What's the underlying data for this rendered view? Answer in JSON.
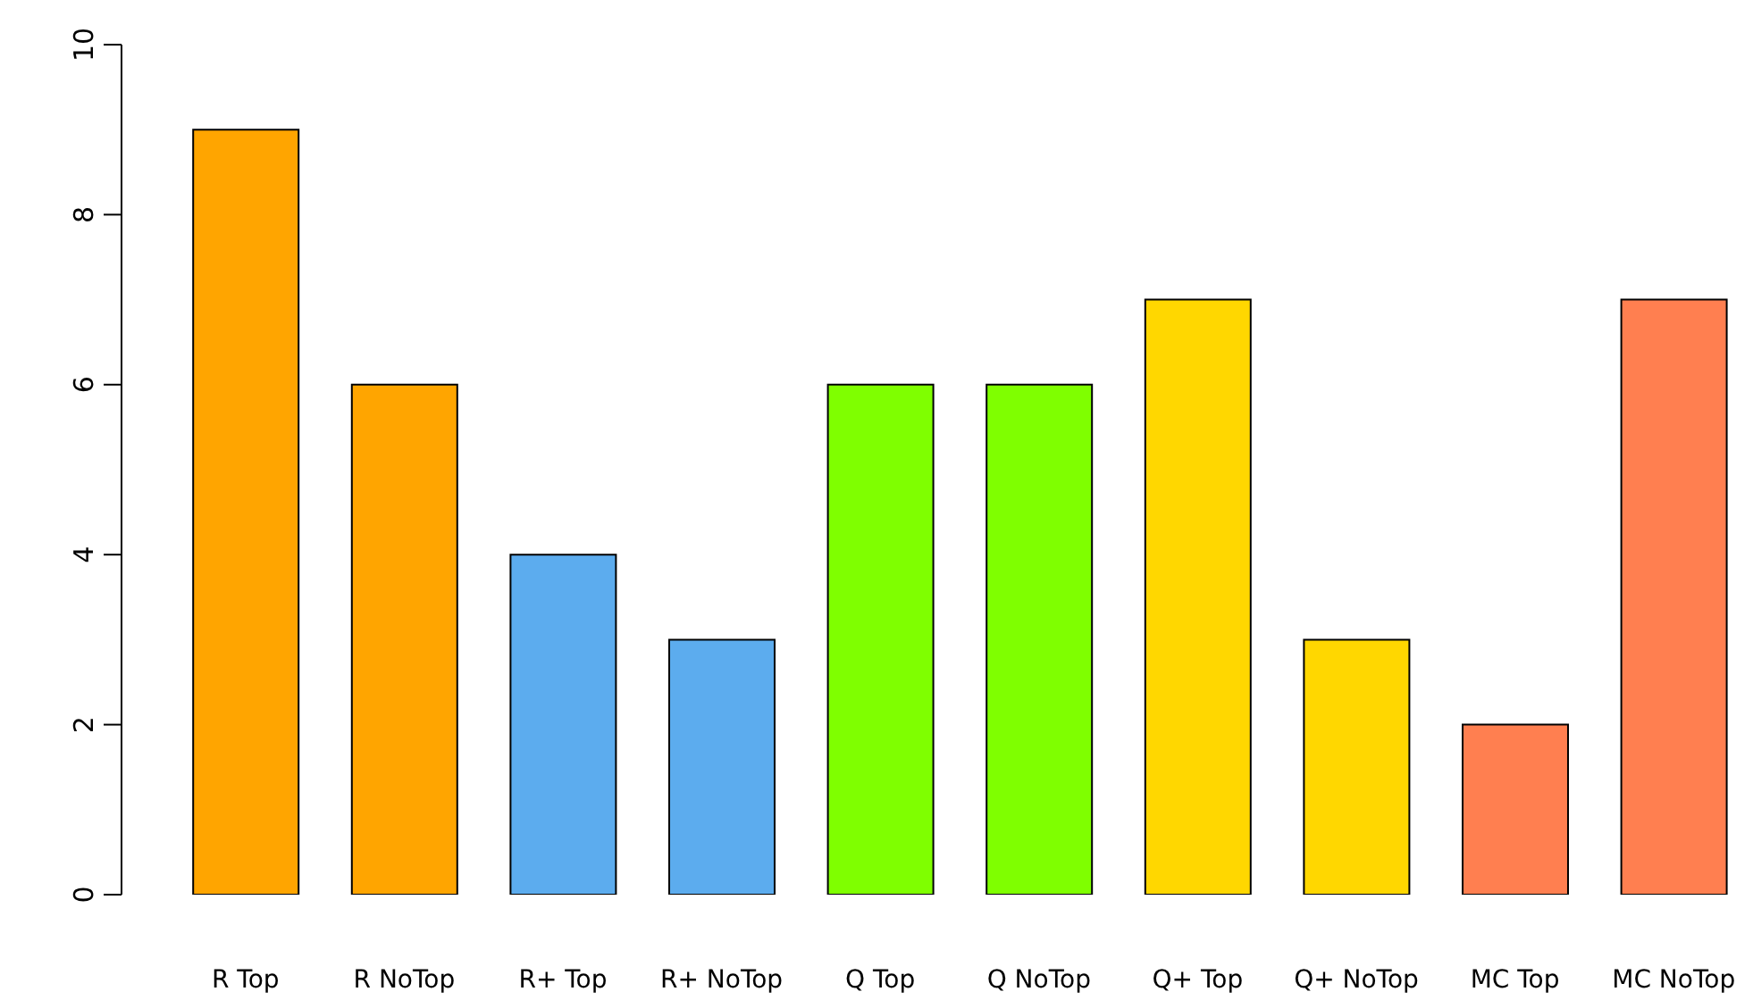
{
  "chart_data": {
    "type": "bar",
    "categories": [
      "R Top",
      "R NoTop",
      "R+ Top",
      "R+ NoTop",
      "Q Top",
      "Q NoTop",
      "Q+ Top",
      "Q+ NoTop",
      "MC Top",
      "MC NoTop"
    ],
    "values": [
      9,
      6,
      4,
      3,
      6,
      6,
      7,
      3,
      2,
      7
    ],
    "colors": [
      "#ffa500",
      "#ffa500",
      "#5cacee",
      "#5cacee",
      "#7fff00",
      "#7fff00",
      "#ffd700",
      "#ffd700",
      "#ff7f50",
      "#ff7f50"
    ],
    "ylim": [
      0,
      10
    ],
    "yticks": [
      0,
      2,
      4,
      6,
      8,
      10
    ],
    "grid": false,
    "legend": false
  }
}
